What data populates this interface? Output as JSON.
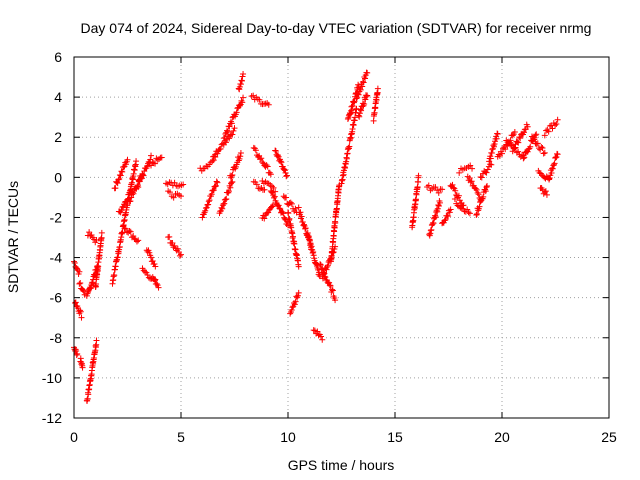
{
  "chart_data": {
    "type": "scatter",
    "title": "Day 074 of 2024, Sidereal Day-to-day VTEC variation (SDTVAR) for receiver nrmg",
    "xlabel": "GPS time / hours",
    "ylabel": "SDTVAR / TECUs",
    "xlim": [
      0,
      25
    ],
    "ylim": [
      -12,
      6
    ],
    "xticks": [
      0,
      5,
      10,
      15,
      20,
      25
    ],
    "yticks": [
      -12,
      -10,
      -8,
      -6,
      -4,
      -2,
      0,
      2,
      4,
      6
    ],
    "xtick_labels": [
      "0",
      "5",
      "10",
      "15",
      "20",
      "25"
    ],
    "ytick_labels": [
      "-12",
      "-10",
      "-8",
      "-6",
      "-4",
      "-2",
      "0",
      "2",
      "4",
      "6"
    ],
    "grid": true,
    "marker": "+",
    "color": "#ff0000",
    "tracks": [
      {
        "x0": 0.0,
        "x1": 0.25,
        "y0": -4.2,
        "y1": -4.8
      },
      {
        "x0": 0.0,
        "x1": 0.15,
        "y0": -8.5,
        "y1": -8.8
      },
      {
        "x0": 0.05,
        "x1": 0.35,
        "y0": -6.2,
        "y1": -6.9
      },
      {
        "x0": 0.25,
        "x1": 0.5,
        "y0": -5.3,
        "y1": -5.8
      },
      {
        "x0": 0.3,
        "x1": 0.4,
        "y0": -9.1,
        "y1": -9.4
      },
      {
        "x0": 0.6,
        "x1": 1.05,
        "y0": -11.2,
        "y1": -8.2
      },
      {
        "x0": 0.6,
        "x1": 1.1,
        "y0": -6.0,
        "y1": -4.4
      },
      {
        "x0": 0.65,
        "x1": 1.05,
        "y0": -2.8,
        "y1": -3.2
      },
      {
        "x0": 1.0,
        "x1": 1.3,
        "y0": -5.5,
        "y1": -2.8
      },
      {
        "x0": 1.8,
        "x1": 2.9,
        "y0": -5.2,
        "y1": 0.8
      },
      {
        "x0": 1.9,
        "x1": 2.5,
        "y0": -0.5,
        "y1": 0.9
      },
      {
        "x0": 2.1,
        "x1": 2.7,
        "y0": -1.8,
        "y1": -0.6
      },
      {
        "x0": 2.3,
        "x1": 3.0,
        "y0": -2.4,
        "y1": -3.2
      },
      {
        "x0": 2.6,
        "x1": 3.2,
        "y0": -1.2,
        "y1": 0.2
      },
      {
        "x0": 3.0,
        "x1": 3.6,
        "y0": -0.4,
        "y1": 1.0
      },
      {
        "x0": 3.2,
        "x1": 3.8,
        "y0": -4.6,
        "y1": -5.2
      },
      {
        "x0": 3.6,
        "x1": 4.1,
        "y0": 0.6,
        "y1": 1.1
      },
      {
        "x0": 3.4,
        "x1": 3.8,
        "y0": -3.6,
        "y1": -4.4
      },
      {
        "x0": 3.7,
        "x1": 3.95,
        "y0": -5.0,
        "y1": -5.5
      },
      {
        "x0": 4.3,
        "x1": 5.1,
        "y0": -0.2,
        "y1": -0.4
      },
      {
        "x0": 4.4,
        "x1": 5.0,
        "y0": -0.8,
        "y1": -1.0
      },
      {
        "x0": 4.4,
        "x1": 5.0,
        "y0": -3.0,
        "y1": -3.9
      },
      {
        "x0": 5.9,
        "x1": 6.6,
        "y0": 0.4,
        "y1": 0.9
      },
      {
        "x0": 6.0,
        "x1": 6.7,
        "y0": -1.9,
        "y1": -0.2
      },
      {
        "x0": 6.5,
        "x1": 7.5,
        "y0": 1.0,
        "y1": 2.4
      },
      {
        "x0": 7.0,
        "x1": 7.9,
        "y0": 2.0,
        "y1": 3.9
      },
      {
        "x0": 6.8,
        "x1": 7.4,
        "y0": -1.8,
        "y1": -0.2
      },
      {
        "x0": 7.3,
        "x1": 7.8,
        "y0": 0.0,
        "y1": 1.2
      },
      {
        "x0": 7.7,
        "x1": 7.9,
        "y0": 4.4,
        "y1": 5.1
      },
      {
        "x0": 8.3,
        "x1": 9.1,
        "y0": 4.0,
        "y1": 3.6
      },
      {
        "x0": 8.4,
        "x1": 9.2,
        "y0": 1.4,
        "y1": 0.2
      },
      {
        "x0": 8.4,
        "x1": 8.9,
        "y0": -0.3,
        "y1": -0.7
      },
      {
        "x0": 8.8,
        "x1": 9.4,
        "y0": -0.2,
        "y1": -0.6
      },
      {
        "x0": 8.8,
        "x1": 9.3,
        "y0": -2.1,
        "y1": -1.3
      },
      {
        "x0": 9.2,
        "x1": 10.0,
        "y0": -0.6,
        "y1": -2.4
      },
      {
        "x0": 9.4,
        "x1": 9.95,
        "y0": 1.4,
        "y1": 0.0
      },
      {
        "x0": 9.8,
        "x1": 10.4,
        "y0": -1.0,
        "y1": -1.7
      },
      {
        "x0": 10.0,
        "x1": 10.5,
        "y0": -1.8,
        "y1": -4.4
      },
      {
        "x0": 10.1,
        "x1": 10.5,
        "y0": -6.7,
        "y1": -5.8
      },
      {
        "x0": 10.5,
        "x1": 11.1,
        "y0": -1.6,
        "y1": -3.5
      },
      {
        "x0": 10.9,
        "x1": 11.5,
        "y0": -2.8,
        "y1": -5.0
      },
      {
        "x0": 11.2,
        "x1": 11.6,
        "y0": -7.6,
        "y1": -8.0
      },
      {
        "x0": 11.5,
        "x1": 12.2,
        "y0": -4.4,
        "y1": -6.0
      },
      {
        "x0": 11.6,
        "x1": 12.2,
        "y0": -5.0,
        "y1": -3.5
      },
      {
        "x0": 12.0,
        "x1": 12.4,
        "y0": -4.2,
        "y1": -0.3
      },
      {
        "x0": 12.5,
        "x1": 13.2,
        "y0": -0.3,
        "y1": 3.4
      },
      {
        "x0": 12.8,
        "x1": 13.3,
        "y0": 2.8,
        "y1": 4.6
      },
      {
        "x0": 13.2,
        "x1": 13.7,
        "y0": 4.0,
        "y1": 5.2
      },
      {
        "x0": 13.3,
        "x1": 13.7,
        "y0": 3.0,
        "y1": 4.2
      },
      {
        "x0": 14.0,
        "x1": 14.2,
        "y0": 2.9,
        "y1": 4.4
      },
      {
        "x0": 15.8,
        "x1": 16.1,
        "y0": -2.5,
        "y1": 0.0
      },
      {
        "x0": 16.5,
        "x1": 17.2,
        "y0": -0.5,
        "y1": -0.7
      },
      {
        "x0": 16.6,
        "x1": 17.1,
        "y0": -2.9,
        "y1": -1.2
      },
      {
        "x0": 17.2,
        "x1": 17.6,
        "y0": -2.4,
        "y1": -1.6
      },
      {
        "x0": 17.6,
        "x1": 18.2,
        "y0": -0.3,
        "y1": -1.4
      },
      {
        "x0": 17.8,
        "x1": 18.5,
        "y0": -1.2,
        "y1": -1.8
      },
      {
        "x0": 18.0,
        "x1": 18.6,
        "y0": 0.3,
        "y1": 0.5
      },
      {
        "x0": 18.4,
        "x1": 19.0,
        "y0": 0.0,
        "y1": -1.0
      },
      {
        "x0": 18.8,
        "x1": 19.3,
        "y0": -1.8,
        "y1": -0.4
      },
      {
        "x0": 19.0,
        "x1": 19.5,
        "y0": 0.0,
        "y1": 0.6
      },
      {
        "x0": 19.4,
        "x1": 19.8,
        "y0": 0.8,
        "y1": 2.2
      },
      {
        "x0": 19.8,
        "x1": 20.6,
        "y0": 1.0,
        "y1": 2.2
      },
      {
        "x0": 20.2,
        "x1": 21.0,
        "y0": 1.8,
        "y1": 1.0
      },
      {
        "x0": 20.5,
        "x1": 21.2,
        "y0": 1.4,
        "y1": 2.6
      },
      {
        "x0": 21.0,
        "x1": 21.6,
        "y0": 1.0,
        "y1": 2.2
      },
      {
        "x0": 21.4,
        "x1": 22.0,
        "y0": 2.0,
        "y1": 1.2
      },
      {
        "x0": 21.7,
        "x1": 22.2,
        "y0": 0.4,
        "y1": -0.2
      },
      {
        "x0": 21.8,
        "x1": 22.1,
        "y0": -0.6,
        "y1": -0.8
      },
      {
        "x0": 22.0,
        "x1": 22.6,
        "y0": 2.2,
        "y1": 2.8
      },
      {
        "x0": 22.2,
        "x1": 22.6,
        "y0": 0.0,
        "y1": 1.2
      }
    ]
  }
}
